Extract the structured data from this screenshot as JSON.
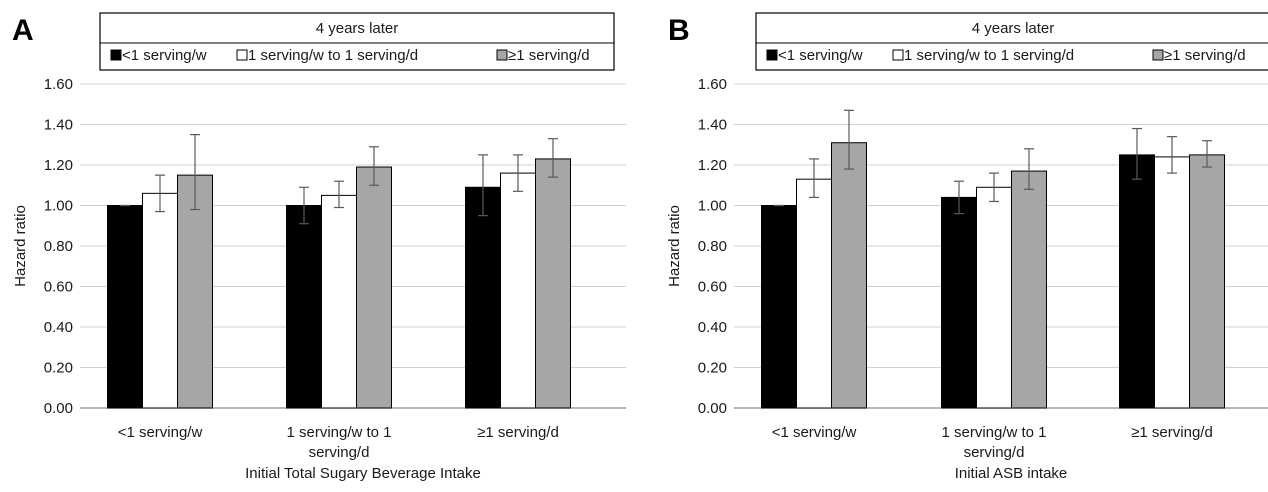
{
  "chart_data": [
    {
      "type": "bar",
      "panel_label": "A",
      "legend_title": "4 years later",
      "legend_placement": "top",
      "categories": [
        "<1 serving/w",
        "1 serving/w to 1 serving/d",
        "≥1 serving/d"
      ],
      "category_lines": [
        [
          "<1 serving/w"
        ],
        [
          "1 serving/w to 1",
          "serving/d"
        ],
        [
          "≥1 serving/d"
        ]
      ],
      "series": [
        {
          "name": "<1 serving/w",
          "color": "#000000",
          "values": [
            1.0,
            1.0,
            1.09
          ],
          "err_low": [
            1.0,
            0.91,
            0.95
          ],
          "err_high": [
            1.0,
            1.09,
            1.25
          ]
        },
        {
          "name": "1 serving/w to 1 serving/d",
          "color": "#ffffff",
          "values": [
            1.06,
            1.05,
            1.16
          ],
          "err_low": [
            0.97,
            0.99,
            1.07
          ],
          "err_high": [
            1.15,
            1.12,
            1.25
          ]
        },
        {
          "name": "≥1 serving/d",
          "color": "#a6a6a6",
          "values": [
            1.15,
            1.19,
            1.23
          ],
          "err_low": [
            0.98,
            1.1,
            1.14
          ],
          "err_high": [
            1.35,
            1.29,
            1.33
          ]
        }
      ],
      "xlabel": "Initial Total Sugary Beverage Intake",
      "ylabel": "Hazard ratio",
      "ylim": [
        0,
        1.6
      ],
      "yticks": [
        "0.00",
        "0.20",
        "0.40",
        "0.60",
        "0.80",
        "1.00",
        "1.20",
        "1.40",
        "1.60"
      ],
      "grid": true
    },
    {
      "type": "bar",
      "panel_label": "B",
      "legend_title": "4 years later",
      "legend_placement": "top",
      "categories": [
        "<1 serving/w",
        "1 serving/w to 1 serving/d",
        "≥1 serving/d"
      ],
      "category_lines": [
        [
          "<1 serving/w"
        ],
        [
          "1 serving/w to 1",
          "serving/d"
        ],
        [
          "≥1 serving/d"
        ]
      ],
      "series": [
        {
          "name": "<1 serving/w",
          "color": "#000000",
          "values": [
            1.0,
            1.04,
            1.25
          ],
          "err_low": [
            1.0,
            0.96,
            1.13
          ],
          "err_high": [
            1.0,
            1.12,
            1.38
          ]
        },
        {
          "name": "1 serving/w to 1 serving/d",
          "color": "#ffffff",
          "values": [
            1.13,
            1.09,
            1.24
          ],
          "err_low": [
            1.04,
            1.02,
            1.16
          ],
          "err_high": [
            1.23,
            1.16,
            1.34
          ]
        },
        {
          "name": "≥1 serving/d",
          "color": "#a6a6a6",
          "values": [
            1.31,
            1.17,
            1.25
          ],
          "err_low": [
            1.18,
            1.08,
            1.19
          ],
          "err_high": [
            1.47,
            1.28,
            1.32
          ]
        }
      ],
      "xlabel": "Initial ASB intake",
      "ylabel": "Hazard ratio",
      "ylim": [
        0,
        1.6
      ],
      "yticks": [
        "0.00",
        "0.20",
        "0.40",
        "0.60",
        "0.80",
        "1.00",
        "1.20",
        "1.40",
        "1.60"
      ],
      "grid": true
    }
  ]
}
